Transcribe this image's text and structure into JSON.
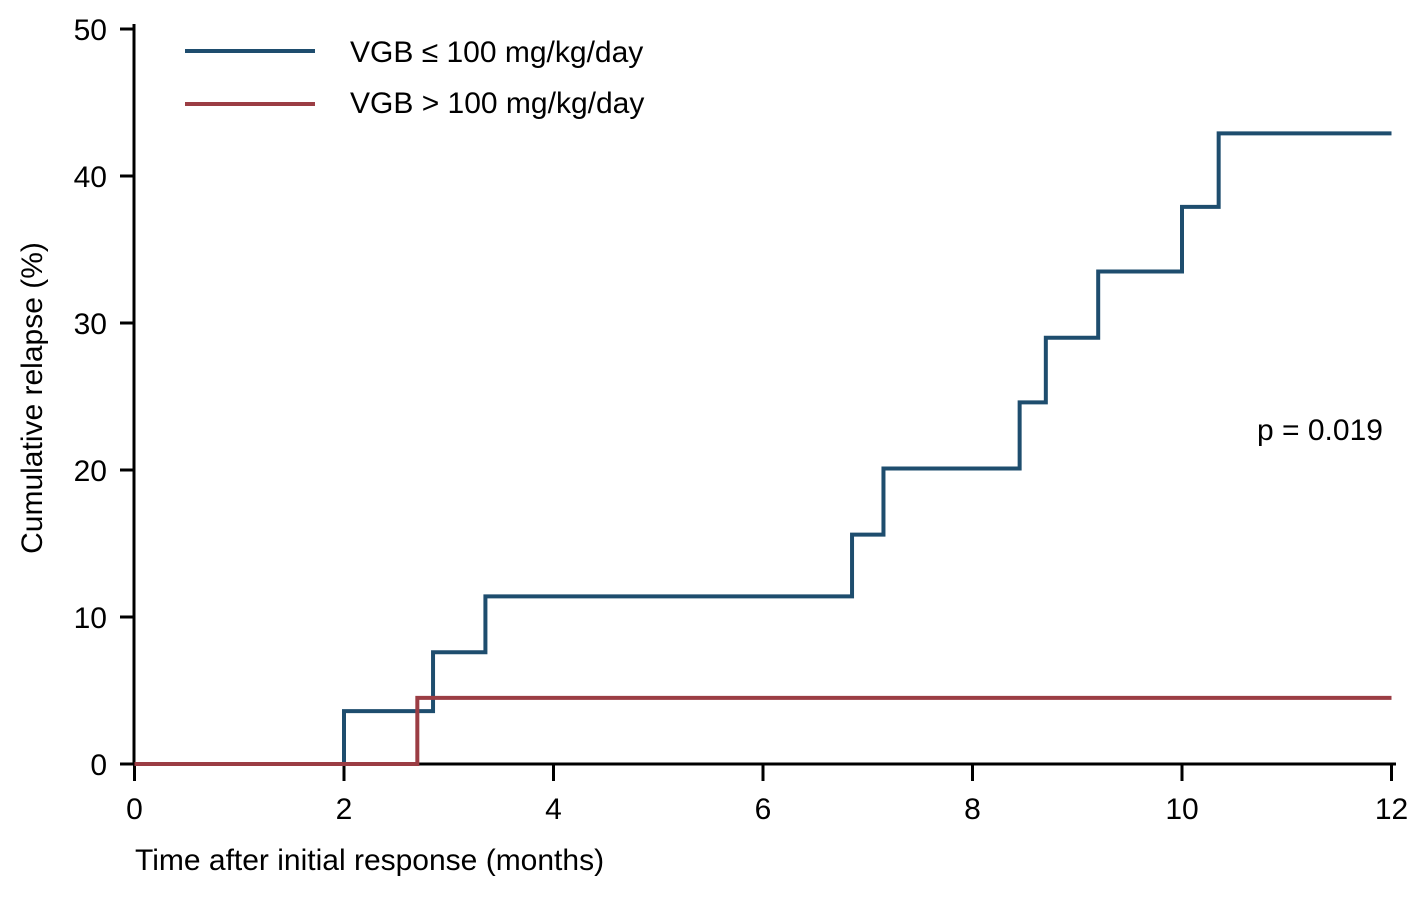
{
  "chart_data": {
    "type": "line",
    "step": true,
    "title": "",
    "xlabel": "Time after initial response (months)",
    "ylabel": "Cumulative relapse (%)",
    "xlim": [
      0,
      12
    ],
    "ylim": [
      0,
      50
    ],
    "x_ticks": [
      0,
      2,
      4,
      6,
      8,
      10,
      12
    ],
    "y_ticks": [
      0,
      10,
      20,
      30,
      40,
      50
    ],
    "grid": false,
    "legend_position": "top-left-inside",
    "annotation": "p = 0.019",
    "axis_color": "#000000",
    "series": [
      {
        "name": "VGB ≤ 100 mg/kg/day",
        "color": "#1E4D6E",
        "steps": [
          [
            0,
            0
          ],
          [
            2.0,
            3.6
          ],
          [
            2.85,
            7.6
          ],
          [
            3.35,
            11.4
          ],
          [
            6.85,
            15.6
          ],
          [
            7.15,
            20.1
          ],
          [
            8.45,
            24.6
          ],
          [
            8.7,
            29.0
          ],
          [
            9.2,
            33.5
          ],
          [
            10.0,
            37.9
          ],
          [
            10.35,
            42.9
          ],
          [
            12,
            42.9
          ]
        ]
      },
      {
        "name": "VGB > 100 mg/kg/day",
        "color": "#9B3D44",
        "steps": [
          [
            0,
            0
          ],
          [
            2.7,
            4.5
          ],
          [
            12,
            4.5
          ]
        ]
      }
    ]
  }
}
